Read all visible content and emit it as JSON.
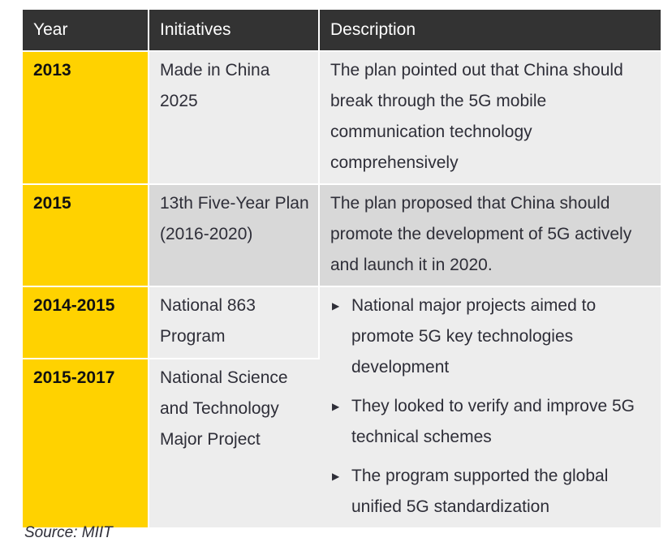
{
  "table": {
    "headers": [
      "Year",
      "Initiatives",
      "Description"
    ],
    "rows": [
      {
        "year": "2013",
        "initiative": "Made in China 2025",
        "description": "The plan pointed out that China should break through the 5G mobile communication technology comprehensively"
      },
      {
        "year": "2015",
        "initiative": "13th Five-Year Plan (2016-2020)",
        "description": "The plan proposed that China should promote the development of 5G actively and launch it in 2020."
      },
      {
        "year": "2014-2015",
        "initiative": "National 863 Program",
        "bullets": [
          "National major projects aimed to promote 5G key technologies development",
          "They looked to verify and improve 5G technical schemes",
          "The program supported the global unified 5G standardization"
        ]
      },
      {
        "year": "2015-2017",
        "initiative": "National Science and Technology Major Project"
      }
    ]
  },
  "source": "Source: MIIT",
  "colors": {
    "header_bg": "#333333",
    "year_bg": "#ffd200",
    "cell_bg": "#ededed",
    "cell_bg_alt": "#d8d8d8"
  },
  "icons": {
    "bullet": "triangle-right-icon"
  }
}
